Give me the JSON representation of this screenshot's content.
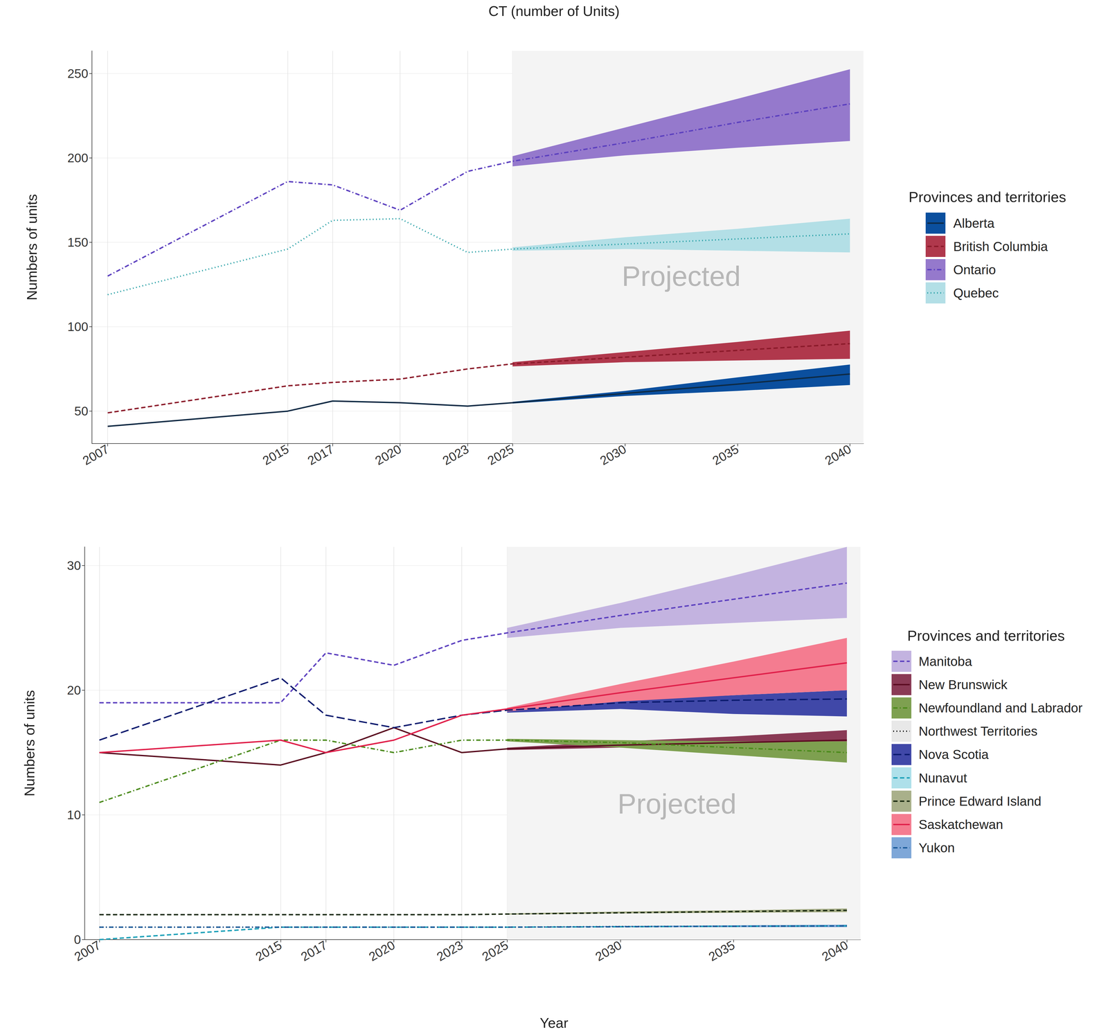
{
  "chart_data": [
    {
      "type": "line",
      "title": "CT (number of Units)",
      "y_label": "Numbers of units",
      "legend_title": "Provinces and territories",
      "x": [
        2007,
        2015,
        2017,
        2020,
        2023,
        2025,
        2030,
        2035,
        2040
      ],
      "xlim": [
        2006.3,
        2040.6
      ],
      "xticks": [
        2007,
        2015,
        2017,
        2020,
        2023,
        2025,
        2030,
        2035,
        2040
      ],
      "ylim": [
        30.8,
        263.4
      ],
      "yticks": [
        50,
        100,
        150,
        200,
        250
      ],
      "grid": true,
      "shaded_region": [
        2025,
        2040.6
      ],
      "annotations": [
        {
          "text": "Projected",
          "x": 2032.5,
          "y": 130
        }
      ],
      "series": [
        {
          "name": "Alberta",
          "color": "#0e2a44",
          "band_color": "#0b4f9e",
          "line_style": "solid",
          "values": [
            41,
            50,
            56,
            55,
            53,
            55,
            60.5,
            66,
            72
          ],
          "lower": [
            null,
            null,
            null,
            null,
            null,
            54.5,
            59,
            62,
            65.5
          ],
          "upper": [
            null,
            null,
            null,
            null,
            null,
            55.5,
            62,
            70,
            77.6
          ]
        },
        {
          "name": "British Columbia",
          "color": "#8b1a2a",
          "band_color": "#b0384c",
          "line_style": "dashed",
          "values": [
            49,
            65,
            67,
            69,
            75,
            78,
            82,
            86,
            90
          ],
          "lower": [
            null,
            null,
            null,
            null,
            null,
            76.5,
            79,
            80,
            81
          ],
          "upper": [
            null,
            null,
            null,
            null,
            null,
            79,
            85,
            91,
            97.7
          ]
        },
        {
          "name": "Ontario",
          "color": "#5b3fbf",
          "band_color": "#9579cc",
          "line_style": "dashdot",
          "values": [
            130,
            186,
            184,
            169,
            192,
            198,
            209,
            221,
            232
          ],
          "lower": [
            null,
            null,
            null,
            null,
            null,
            195,
            201.5,
            206,
            210
          ],
          "upper": [
            null,
            null,
            null,
            null,
            null,
            201,
            218,
            235,
            252.5
          ]
        },
        {
          "name": "Quebec",
          "color": "#1a9aa0",
          "band_color": "#b3dfe6",
          "line_style": "dotted",
          "values": [
            119,
            146,
            163,
            164,
            144,
            146,
            149,
            152,
            155
          ],
          "lower": [
            null,
            null,
            null,
            null,
            null,
            145,
            146,
            145,
            144
          ],
          "upper": [
            null,
            null,
            null,
            null,
            null,
            147,
            153,
            158,
            164
          ]
        }
      ]
    },
    {
      "type": "line",
      "y_label": "Numbers of units",
      "x_label": "Year",
      "legend_title": "Provinces and territories",
      "x": [
        2007,
        2015,
        2017,
        2020,
        2023,
        2025,
        2030,
        2035,
        2040
      ],
      "xlim": [
        2006.35,
        2040.6
      ],
      "xticks": [
        2007,
        2015,
        2017,
        2020,
        2023,
        2025,
        2030,
        2035,
        2040
      ],
      "ylim": [
        0,
        31.5
      ],
      "yticks": [
        0,
        10,
        20,
        30
      ],
      "grid": true,
      "shaded_region": [
        2025,
        2040.6
      ],
      "annotations": [
        {
          "text": "Projected",
          "x": 2032.5,
          "y": 10.9
        }
      ],
      "series": [
        {
          "name": "Manitoba",
          "color": "#5b3fbf",
          "band_color": "#c3b3e0",
          "line_style": "dashed",
          "values": [
            19,
            19,
            23,
            22,
            24,
            24.6,
            26,
            27.3,
            28.6
          ],
          "lower": [
            null,
            null,
            null,
            null,
            null,
            24.2,
            25,
            25.4,
            25.8
          ],
          "upper": [
            null,
            null,
            null,
            null,
            null,
            25,
            27,
            29.2,
            31.5
          ]
        },
        {
          "name": "New Brunswick",
          "color": "#5a0a20",
          "band_color": "#8a3a55",
          "line_style": "solid",
          "values": [
            15,
            14,
            15,
            17,
            15,
            15.3,
            15.6,
            15.8,
            16
          ],
          "lower": [
            null,
            null,
            null,
            null,
            null,
            15.2,
            15.4,
            15.5,
            15.6
          ],
          "upper": [
            null,
            null,
            null,
            null,
            null,
            15.4,
            15.9,
            16.3,
            16.8
          ]
        },
        {
          "name": "Newfoundland and Labrador",
          "color": "#4a8a1a",
          "band_color": "#7ea050",
          "line_style": "dashdot",
          "values": [
            11,
            16,
            16,
            15,
            16,
            16,
            15.8,
            15.4,
            15
          ],
          "lower": [
            null,
            null,
            null,
            null,
            null,
            15.9,
            15.4,
            14.8,
            14.2
          ],
          "upper": [
            null,
            null,
            null,
            null,
            null,
            16.1,
            16,
            15.9,
            15.9
          ]
        },
        {
          "name": "Northwest Territories",
          "color": "#000000",
          "band_color": "#e8e8e8",
          "line_style": "dotted",
          "values": [
            1,
            1,
            1,
            1,
            1,
            1,
            1.05,
            1.07,
            1.1
          ],
          "lower": [
            null,
            null,
            null,
            null,
            null,
            1,
            1,
            1,
            1
          ],
          "upper": [
            null,
            null,
            null,
            null,
            null,
            1,
            1.1,
            1.15,
            1.2
          ]
        },
        {
          "name": "Nova Scotia",
          "color": "#0a1a6e",
          "band_color": "#4048a8",
          "line_style": "longdash",
          "values": [
            16,
            21,
            18,
            17,
            18,
            18.4,
            19,
            19.2,
            19.3
          ],
          "lower": [
            null,
            null,
            null,
            null,
            null,
            18.2,
            18.5,
            18.1,
            17.9
          ],
          "upper": [
            null,
            null,
            null,
            null,
            null,
            18.5,
            19.2,
            19.6,
            20
          ]
        },
        {
          "name": "Nunavut",
          "color": "#1aa0b8",
          "band_color": "#aee0ea",
          "line_style": "dashed",
          "values": [
            0,
            1,
            1,
            1,
            1,
            1,
            1.03,
            1.07,
            1.1
          ],
          "lower": [
            null,
            null,
            null,
            null,
            null,
            1,
            1,
            1,
            1
          ],
          "upper": [
            null,
            null,
            null,
            null,
            null,
            1,
            1.1,
            1.15,
            1.2
          ]
        },
        {
          "name": "Prince Edward Island",
          "color": "#1a2a10",
          "band_color": "#a9b08a",
          "line_style": "dashed",
          "values": [
            2,
            2,
            2,
            2,
            2,
            2.05,
            2.15,
            2.25,
            2.35
          ],
          "lower": [
            null,
            null,
            null,
            null,
            null,
            2,
            2.1,
            2.15,
            2.2
          ],
          "upper": [
            null,
            null,
            null,
            null,
            null,
            2.1,
            2.25,
            2.35,
            2.5
          ]
        },
        {
          "name": "Saskatchewan",
          "color": "#e0204a",
          "band_color": "#f47c90",
          "line_style": "solid",
          "values": [
            15,
            16,
            15,
            16,
            18,
            18.5,
            19.8,
            21,
            22.2
          ],
          "lower": [
            null,
            null,
            null,
            null,
            null,
            18.3,
            19.1,
            19.6,
            20
          ],
          "upper": [
            null,
            null,
            null,
            null,
            null,
            18.6,
            20.5,
            22.3,
            24.2
          ]
        },
        {
          "name": "Yukon",
          "color": "#1a5a9a",
          "band_color": "#7ea7d8",
          "line_style": "dashdot",
          "values": [
            1,
            1,
            1,
            1,
            1,
            1,
            1.03,
            1.07,
            1.1
          ],
          "lower": [
            null,
            null,
            null,
            null,
            null,
            1,
            1,
            1,
            1
          ],
          "upper": [
            null,
            null,
            null,
            null,
            null,
            1,
            1.1,
            1.15,
            1.2
          ]
        }
      ]
    }
  ]
}
